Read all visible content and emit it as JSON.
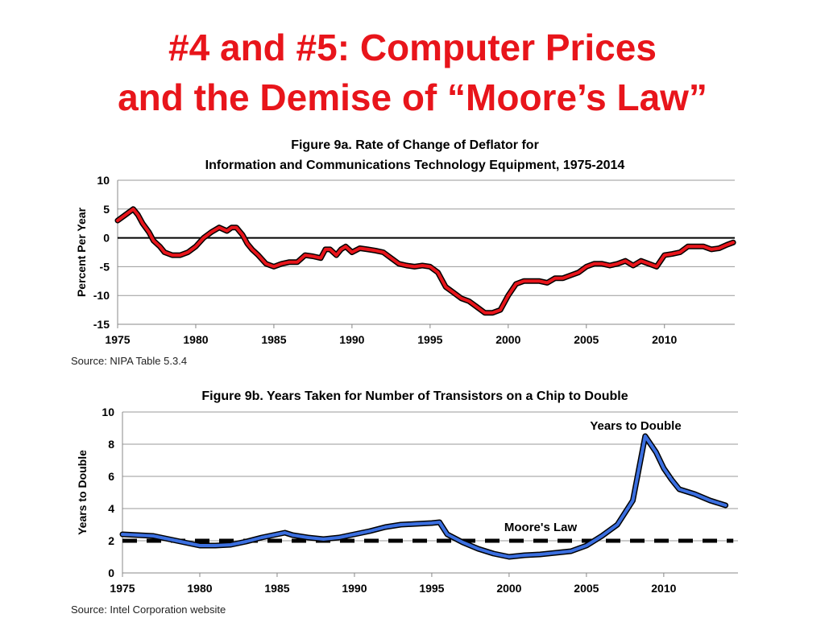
{
  "slide": {
    "title_line1": "#4 and #5:  Computer Prices",
    "title_line2": "and the Demise of “Moore’s Law”"
  },
  "colors": {
    "title": "#e8151b",
    "deflator_line": "#e8151b",
    "transistor_line": "#3b6fe0",
    "outline": "#000000"
  },
  "chart_data": [
    {
      "type": "line",
      "title": "Figure 9a.  Rate of Change of Deflator for",
      "subtitle": "Information and Communications  Technology Equipment, 1975-2014",
      "xlabel": "",
      "ylabel": "Percent Per Year",
      "xlim": [
        1975,
        2014.5
      ],
      "ylim": [
        -15,
        10
      ],
      "xticks": [
        1975,
        1980,
        1985,
        1990,
        1995,
        2000,
        2005,
        2010
      ],
      "yticks": [
        -15,
        -10,
        -5,
        0,
        5,
        10
      ],
      "grid": true,
      "source": "Source: NIPA Table 5.3.4",
      "reference_line": 0,
      "series": [
        {
          "x": [
            1975.0,
            1975.5,
            1976.0,
            1976.3,
            1976.6,
            1977.0,
            1977.3,
            1977.7,
            1978.0,
            1978.5,
            1979.0,
            1979.5,
            1980.0,
            1980.5,
            1981.0,
            1981.5,
            1982.0,
            1982.3,
            1982.6,
            1983.0,
            1983.3,
            1983.6,
            1984.0,
            1984.5,
            1985.0,
            1985.5,
            1986.0,
            1986.5,
            1987.0,
            1987.5,
            1988.0,
            1988.3,
            1988.6,
            1989.0,
            1989.3,
            1989.6,
            1990.0,
            1990.5,
            1991.0,
            1991.5,
            1992.0,
            1992.5,
            1993.0,
            1993.5,
            1994.0,
            1994.5,
            1995.0,
            1995.5,
            1996.0,
            1996.5,
            1997.0,
            1997.5,
            1998.0,
            1998.5,
            1999.0,
            1999.5,
            2000.0,
            2000.5,
            2001.0,
            2001.5,
            2002.0,
            2002.5,
            2003.0,
            2003.5,
            2004.0,
            2004.5,
            2005.0,
            2005.5,
            2006.0,
            2006.5,
            2007.0,
            2007.5,
            2008.0,
            2008.5,
            2009.0,
            2009.5,
            2010.0,
            2010.5,
            2011.0,
            2011.5,
            2012.0,
            2012.5,
            2013.0,
            2013.5,
            2014.0,
            2014.4
          ],
          "values": [
            3.0,
            4.0,
            5.0,
            4.0,
            2.5,
            1.0,
            -0.5,
            -1.5,
            -2.5,
            -3.0,
            -3.0,
            -2.5,
            -1.5,
            0.0,
            1.0,
            1.8,
            1.2,
            1.8,
            1.8,
            0.5,
            -1.0,
            -2.0,
            -3.0,
            -4.5,
            -5.0,
            -4.5,
            -4.2,
            -4.2,
            -3.0,
            -3.2,
            -3.5,
            -2.0,
            -2.0,
            -3.0,
            -2.0,
            -1.5,
            -2.5,
            -1.8,
            -2.0,
            -2.2,
            -2.5,
            -3.5,
            -4.5,
            -4.8,
            -5.0,
            -4.8,
            -5.0,
            -6.0,
            -8.5,
            -9.5,
            -10.5,
            -11.0,
            -12.0,
            -13.0,
            -13.0,
            -12.5,
            -10.0,
            -8.0,
            -7.5,
            -7.5,
            -7.5,
            -7.8,
            -7.0,
            -7.0,
            -6.5,
            -6.0,
            -5.0,
            -4.5,
            -4.5,
            -4.8,
            -4.5,
            -4.0,
            -4.8,
            -4.0,
            -4.5,
            -5.0,
            -3.0,
            -2.8,
            -2.5,
            -1.5,
            -1.5,
            -1.5,
            -2.0,
            -1.8,
            -1.2,
            -0.8
          ]
        }
      ]
    },
    {
      "type": "line",
      "title": "Figure 9b. Years Taken for Number of Transistors on a Chip to Double",
      "xlabel": "",
      "ylabel": "Years to Double",
      "xlim": [
        1975,
        2014.8
      ],
      "ylim": [
        0,
        10
      ],
      "xticks": [
        1975,
        1980,
        1985,
        1990,
        1995,
        2000,
        2005,
        2010
      ],
      "yticks": [
        0,
        2,
        4,
        6,
        8,
        10
      ],
      "grid": true,
      "source": "Source: Intel Corporation website",
      "series": [
        {
          "name": "Years to Double",
          "x": [
            1975.0,
            1976.0,
            1977.0,
            1978.0,
            1979.0,
            1980.0,
            1981.0,
            1982.0,
            1983.0,
            1984.0,
            1985.0,
            1985.5,
            1986.0,
            1987.0,
            1988.0,
            1989.0,
            1990.0,
            1991.0,
            1992.0,
            1993.0,
            1994.0,
            1995.0,
            1995.5,
            1996.0,
            1997.0,
            1998.0,
            1999.0,
            2000.0,
            2001.0,
            2002.0,
            2003.0,
            2004.0,
            2005.0,
            2006.0,
            2007.0,
            2008.0,
            2008.8,
            2009.5,
            2010.0,
            2010.5,
            2011.0,
            2012.0,
            2013.0,
            2014.0
          ],
          "values": [
            2.4,
            2.35,
            2.3,
            2.1,
            1.9,
            1.7,
            1.7,
            1.75,
            1.95,
            2.2,
            2.4,
            2.5,
            2.35,
            2.2,
            2.1,
            2.2,
            2.4,
            2.6,
            2.85,
            3.0,
            3.05,
            3.1,
            3.15,
            2.4,
            1.9,
            1.5,
            1.2,
            1.0,
            1.1,
            1.15,
            1.25,
            1.35,
            1.7,
            2.3,
            3.0,
            4.5,
            8.5,
            7.5,
            6.5,
            5.8,
            5.2,
            4.9,
            4.5,
            4.2
          ]
        },
        {
          "name": "Moore's Law",
          "x": [
            1975.0,
            2014.5
          ],
          "values": [
            2.0,
            2.0
          ]
        }
      ]
    }
  ]
}
